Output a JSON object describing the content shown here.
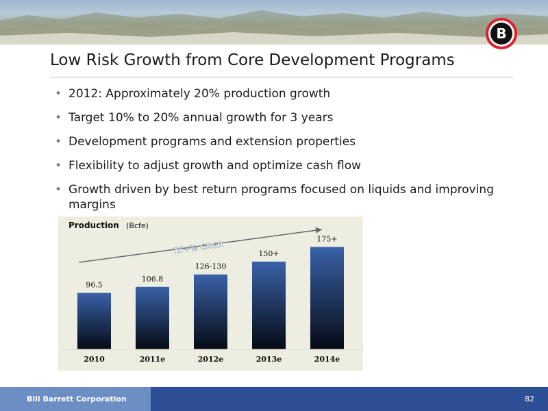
{
  "slide": {
    "title": "Low Risk Growth from Core Development Programs",
    "bullets": [
      "2012:  Approximately 20% production growth",
      "Target 10% to 20% annual growth for 3 years",
      "Development programs and extension properties",
      "Flexibility to adjust growth and optimize cash flow",
      "Growth driven by best return programs focused on liquids and improving margins"
    ],
    "bullet_glyph": "•",
    "logo_letter": "B"
  },
  "chart_data": {
    "type": "bar",
    "title": "Production",
    "unit": "(Bcfe)",
    "categories": [
      "2010",
      "2011e",
      "2012e",
      "2013e",
      "2014e"
    ],
    "values": [
      96.5,
      106.8,
      128,
      150,
      175
    ],
    "data_labels": [
      "96.5",
      "106.8",
      "126-130",
      "150+",
      "175+"
    ],
    "annotation": "15+% CAGR",
    "ylim": [
      0,
      185
    ],
    "grid": false,
    "bar_gradient": [
      "#3a62a8",
      "#050a14"
    ]
  },
  "footer": {
    "company": "Bill Barrett Corporation",
    "page_number": "82"
  },
  "colors": {
    "footer_left": "#6c8ec5",
    "footer_right": "#2c4f95",
    "chart_background": "#eeede1",
    "logo_red": "#d9232e"
  }
}
